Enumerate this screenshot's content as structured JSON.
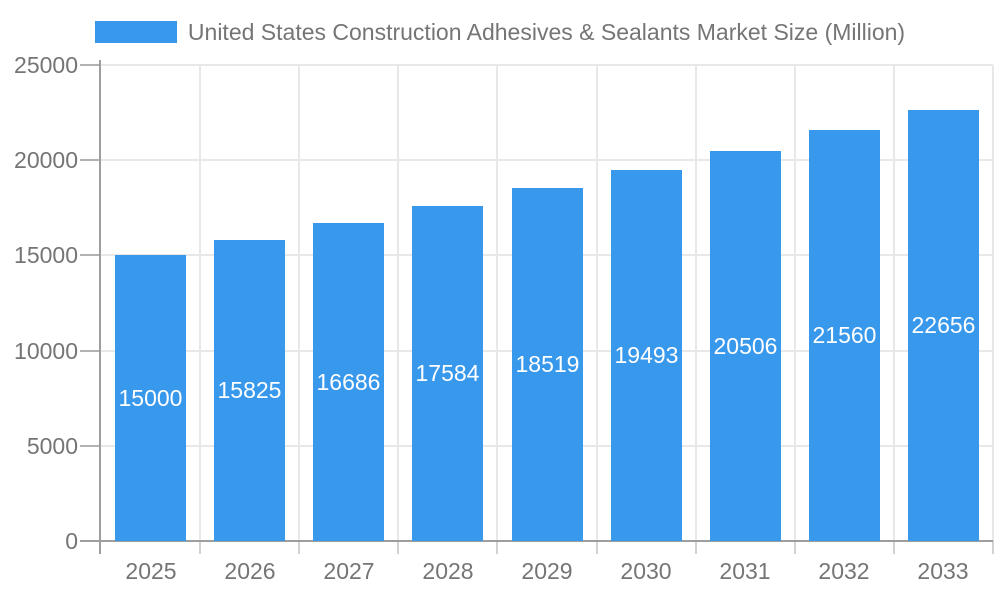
{
  "legend": {
    "label": "United States Construction Adhesives & Sealants Market Size (Million)"
  },
  "chart_data": {
    "type": "bar",
    "title": "United States Construction Adhesives & Sealants Market Size (Million)",
    "categories": [
      "2025",
      "2026",
      "2027",
      "2028",
      "2029",
      "2030",
      "2031",
      "2032",
      "2033"
    ],
    "values": [
      15000,
      15825,
      16686,
      17584,
      18519,
      19493,
      20506,
      21560,
      22656
    ],
    "xlabel": "",
    "ylabel": "",
    "ylim": [
      0,
      25000
    ],
    "yticks": [
      0,
      5000,
      10000,
      15000,
      20000,
      25000
    ],
    "grid": true,
    "legend_position": "top-center",
    "value_label_style": "inside-center",
    "bar_color": "#3898EC",
    "value_label_color": "#FFFFFF"
  },
  "colors": {
    "background": "#FFFFFF",
    "bar": "#3898EC",
    "axis_line": "#9E9E9E",
    "grid_line": "#E8E8E8",
    "tick_mark": "#B2B2B2",
    "boundary_tick": "#D2D2D2",
    "axis_text": "#757575",
    "legend_text": "#757575",
    "value_label": "#FFFFFF"
  }
}
